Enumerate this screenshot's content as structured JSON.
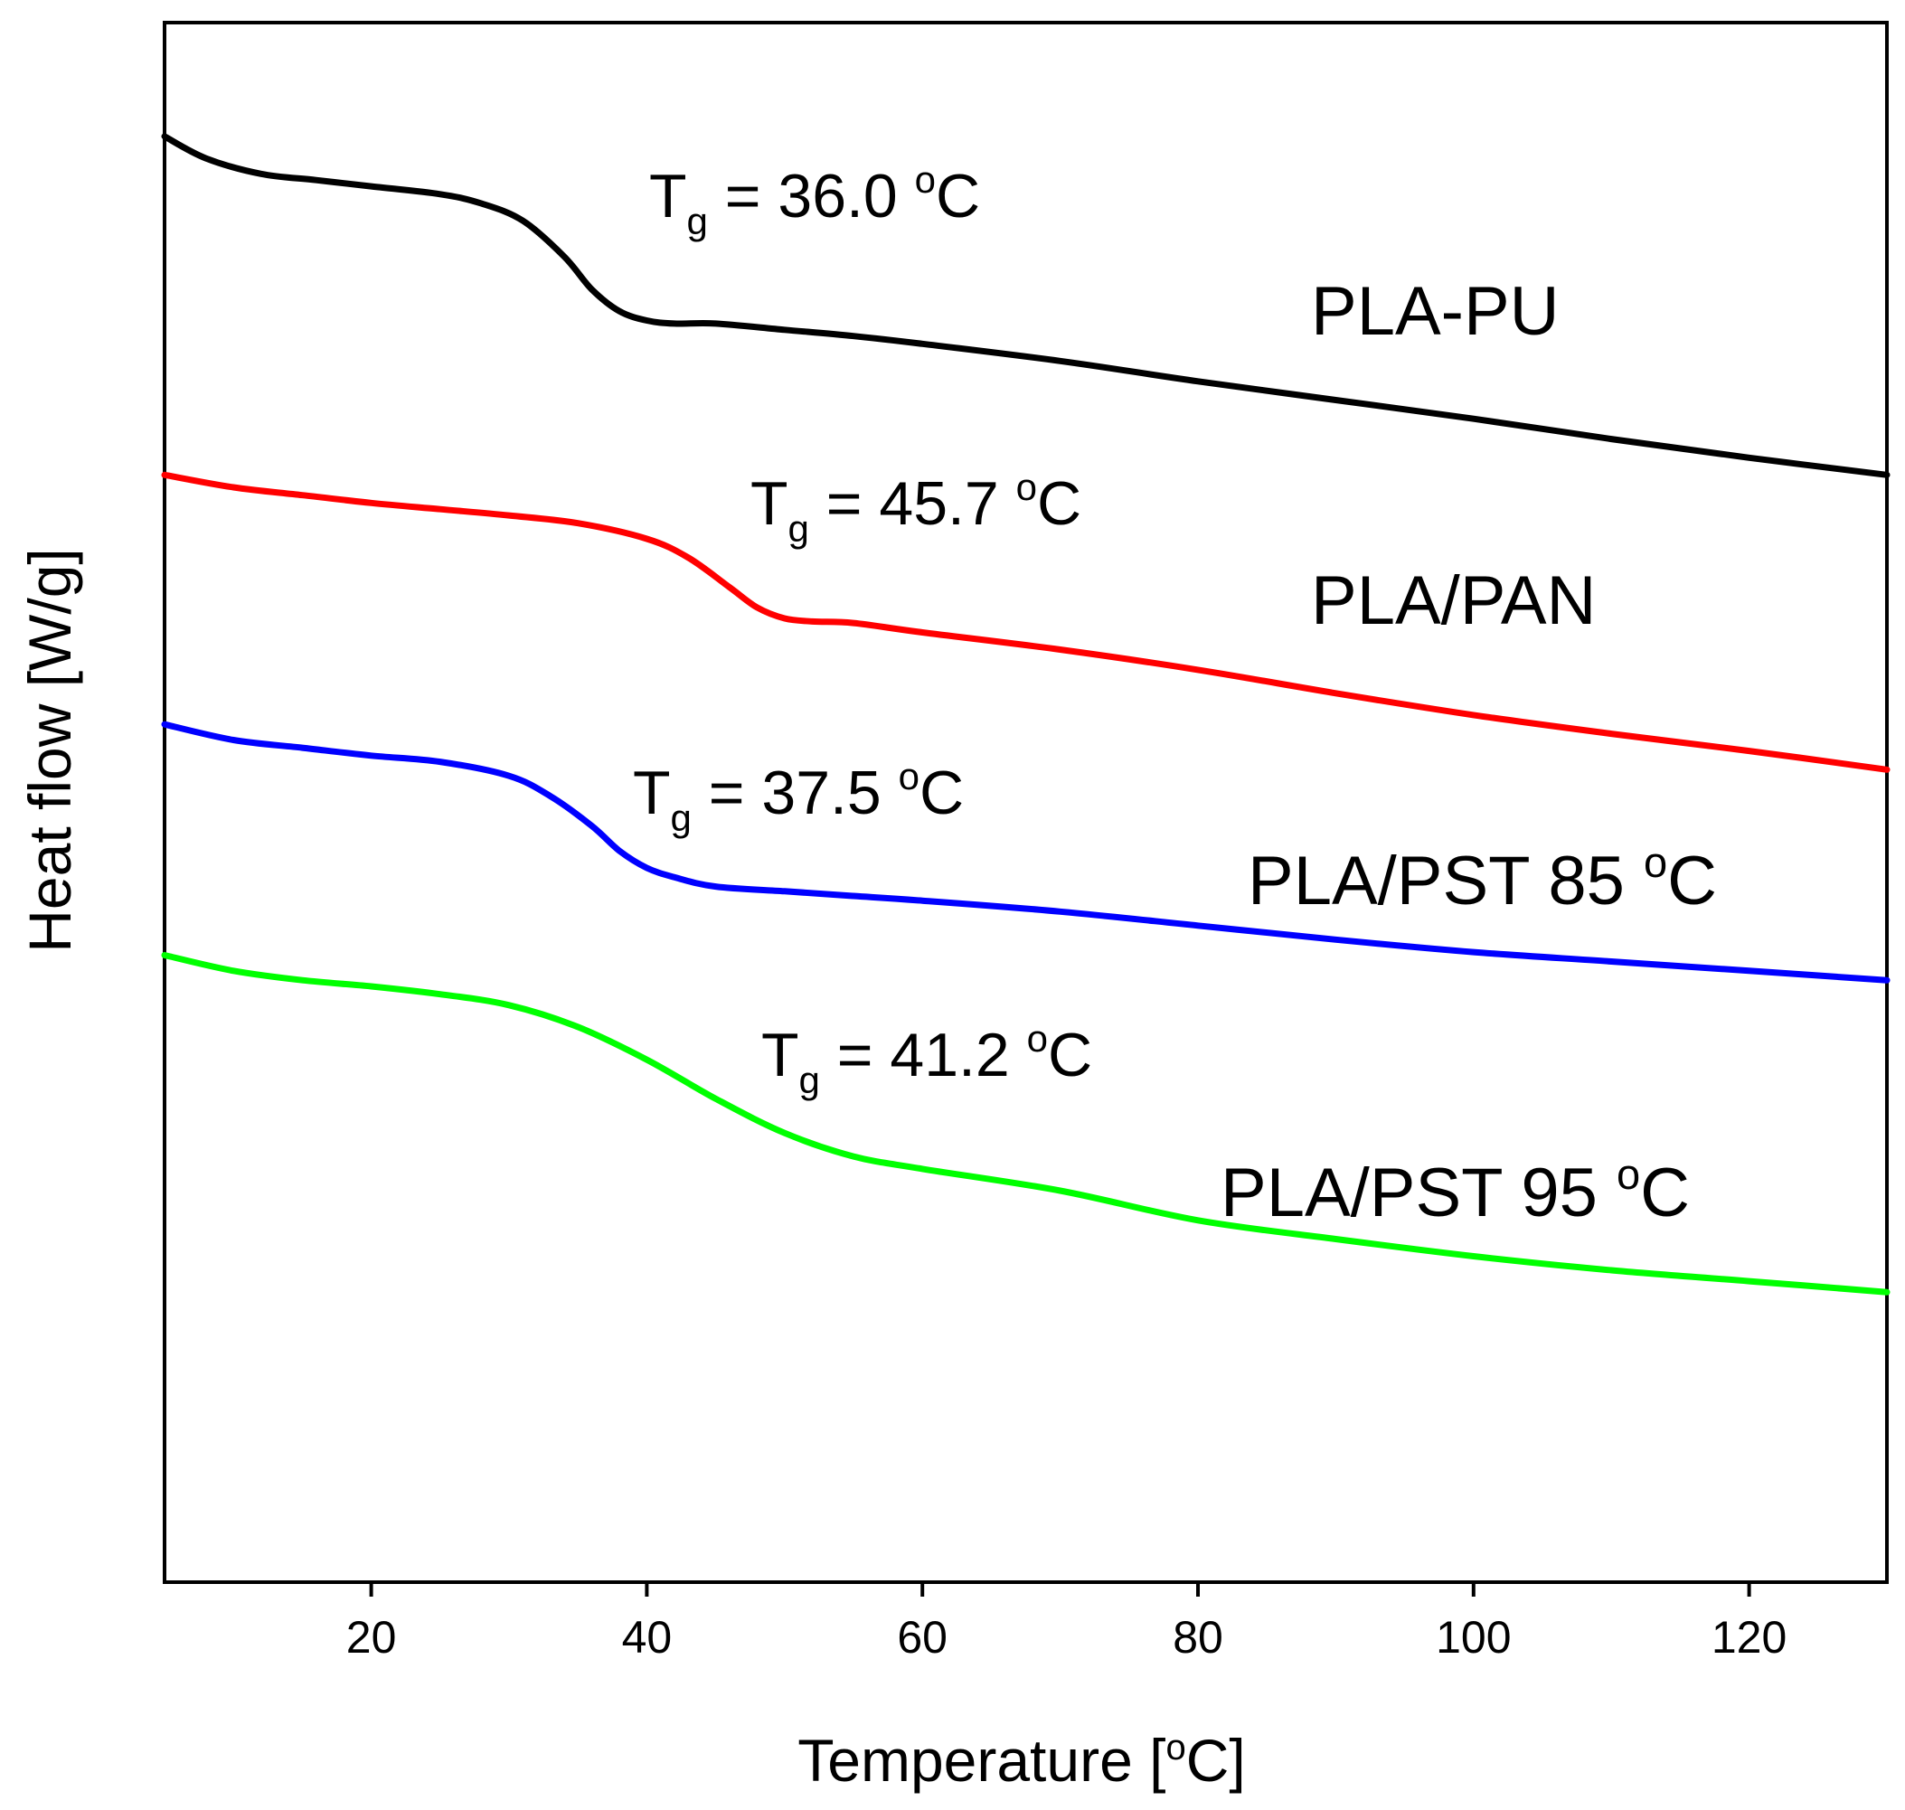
{
  "chart_data": {
    "type": "line",
    "title": "",
    "xlabel": "Temperature",
    "xlabel_unit": "[oC]",
    "ylabel": "Heat flow [W/g]",
    "xlim": [
      5,
      130
    ],
    "ylim": [
      0,
      100
    ],
    "yticks_shown": false,
    "xticks": [
      20,
      40,
      60,
      80,
      100,
      120
    ],
    "grid": false,
    "series": [
      {
        "name": "PLA-PU",
        "color": "#000000",
        "tg_label": "Tg = 36.0 oC",
        "tg": 36.0,
        "x": [
          5,
          8,
          12,
          16,
          20,
          25,
          28,
          31,
          34,
          36,
          38,
          40,
          42,
          45,
          50,
          55,
          60,
          70,
          80,
          90,
          100,
          110,
          120,
          130
        ],
        "y": [
          92.7,
          91.3,
          90.3,
          89.9,
          89.5,
          89.0,
          88.4,
          87.3,
          85.0,
          82.9,
          81.5,
          80.9,
          80.7,
          80.7,
          80.3,
          79.9,
          79.4,
          78.3,
          77.0,
          75.8,
          74.6,
          73.3,
          72.1,
          71.0
        ]
      },
      {
        "name": "PLA/PAN",
        "color": "#ff0000",
        "tg_label": "Tg = 45.7 oC",
        "tg": 45.7,
        "x": [
          5,
          10,
          15,
          20,
          25,
          30,
          35,
          40,
          43,
          46,
          48,
          50,
          52,
          55,
          60,
          70,
          80,
          90,
          100,
          110,
          120,
          130
        ],
        "y": [
          71.0,
          70.2,
          69.7,
          69.2,
          68.8,
          68.4,
          67.9,
          66.9,
          65.7,
          63.8,
          62.5,
          61.8,
          61.6,
          61.5,
          60.9,
          59.8,
          58.5,
          57.0,
          55.6,
          54.4,
          53.3,
          52.1
        ]
      },
      {
        "name": "PLA/PST 85 oC",
        "color": "#0000ff",
        "tg_label": "Tg = 37.5 oC",
        "tg": 37.5,
        "x": [
          5,
          10,
          15,
          20,
          25,
          30,
          33,
          36,
          38,
          40,
          42,
          45,
          50,
          55,
          60,
          70,
          80,
          90,
          100,
          110,
          120,
          130
        ],
        "y": [
          55.0,
          54.0,
          53.5,
          53.0,
          52.6,
          51.7,
          50.4,
          48.5,
          46.9,
          45.8,
          45.2,
          44.6,
          44.3,
          44.0,
          43.7,
          43.0,
          42.1,
          41.2,
          40.4,
          39.8,
          39.2,
          38.6
        ]
      },
      {
        "name": "PLA/PST 95 oC",
        "color": "#00ff00",
        "tg_label": "Tg = 41.2 oC",
        "tg": 41.2,
        "x": [
          5,
          10,
          15,
          20,
          25,
          30,
          35,
          40,
          45,
          50,
          55,
          60,
          70,
          80,
          90,
          100,
          110,
          120,
          130
        ],
        "y": [
          40.2,
          39.2,
          38.6,
          38.2,
          37.7,
          37.0,
          35.6,
          33.5,
          31.0,
          28.8,
          27.3,
          26.5,
          25.1,
          23.2,
          22.0,
          20.9,
          20.0,
          19.3,
          18.6
        ]
      }
    ]
  }
}
